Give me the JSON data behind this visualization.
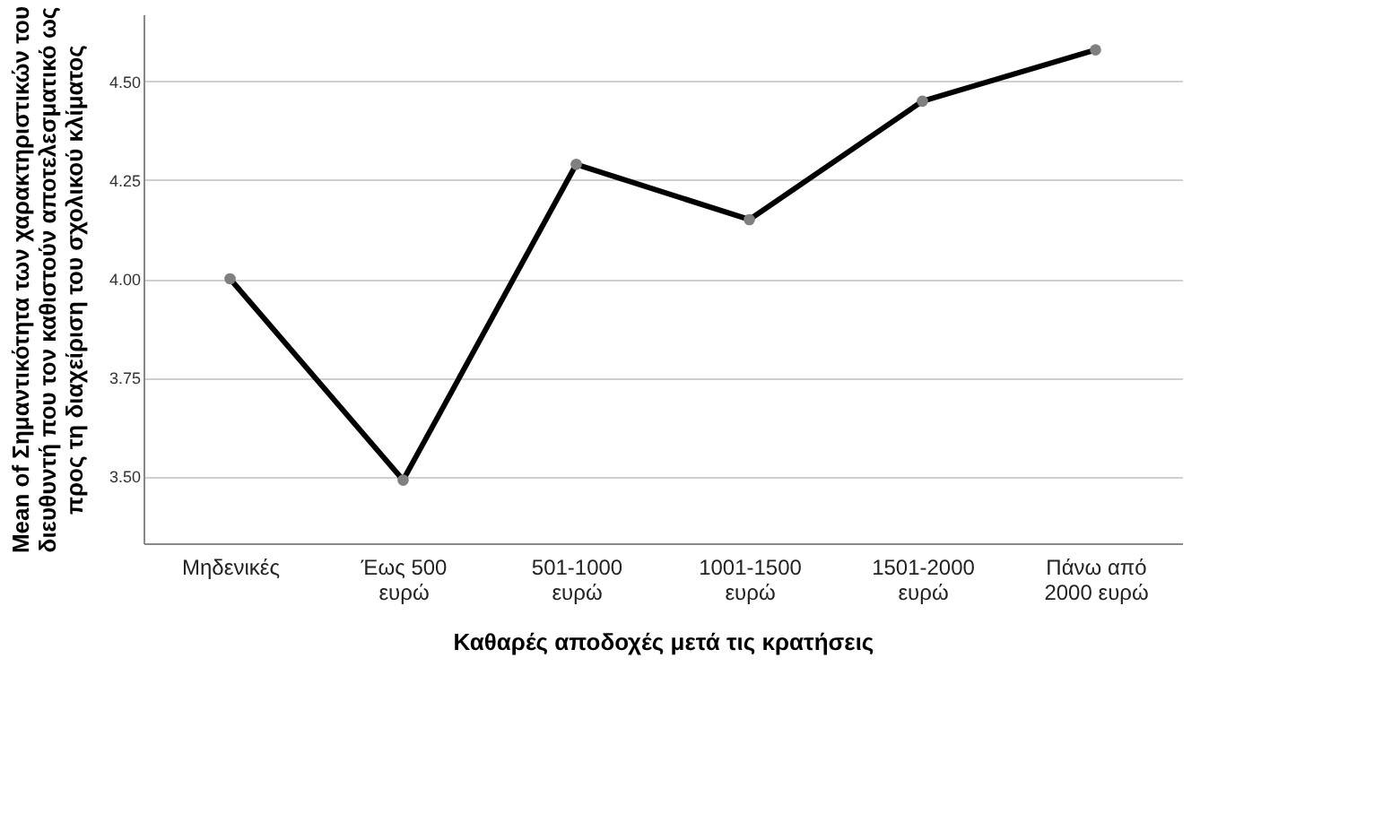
{
  "chart_data": {
    "type": "line",
    "xlabel": "Καθαρές αποδοχές μετά τις κρατήσεις",
    "ylabel": "Mean of Σημαντικότητα των χαρακτηριστικών του διευθυντή που τον καθιστούν αποτελεσματικό ως προς τη διαχείριση του σχολικού κλίματος",
    "categories": [
      "Μηδενικές",
      "Έως 500 ευρώ",
      "501-1000 ευρώ",
      "1001-1500 ευρώ",
      "1501-2000 ευρώ",
      "Πάνω από 2000 ευρώ"
    ],
    "series": [
      {
        "color": "#000000",
        "values": [
          4.0,
          3.49,
          4.29,
          4.15,
          4.45,
          4.58
        ]
      }
    ],
    "ylim": [
      3.33,
      4.67
    ],
    "yticks": [
      {
        "value": 3.5,
        "label": "3.50"
      },
      {
        "value": 3.75,
        "label": "3.75"
      },
      {
        "value": 4.0,
        "label": "4.00"
      },
      {
        "value": 4.25,
        "label": "4.25"
      },
      {
        "value": 4.5,
        "label": "4.50"
      }
    ],
    "grid": "y",
    "marker": "circle",
    "line_style": "solid"
  }
}
